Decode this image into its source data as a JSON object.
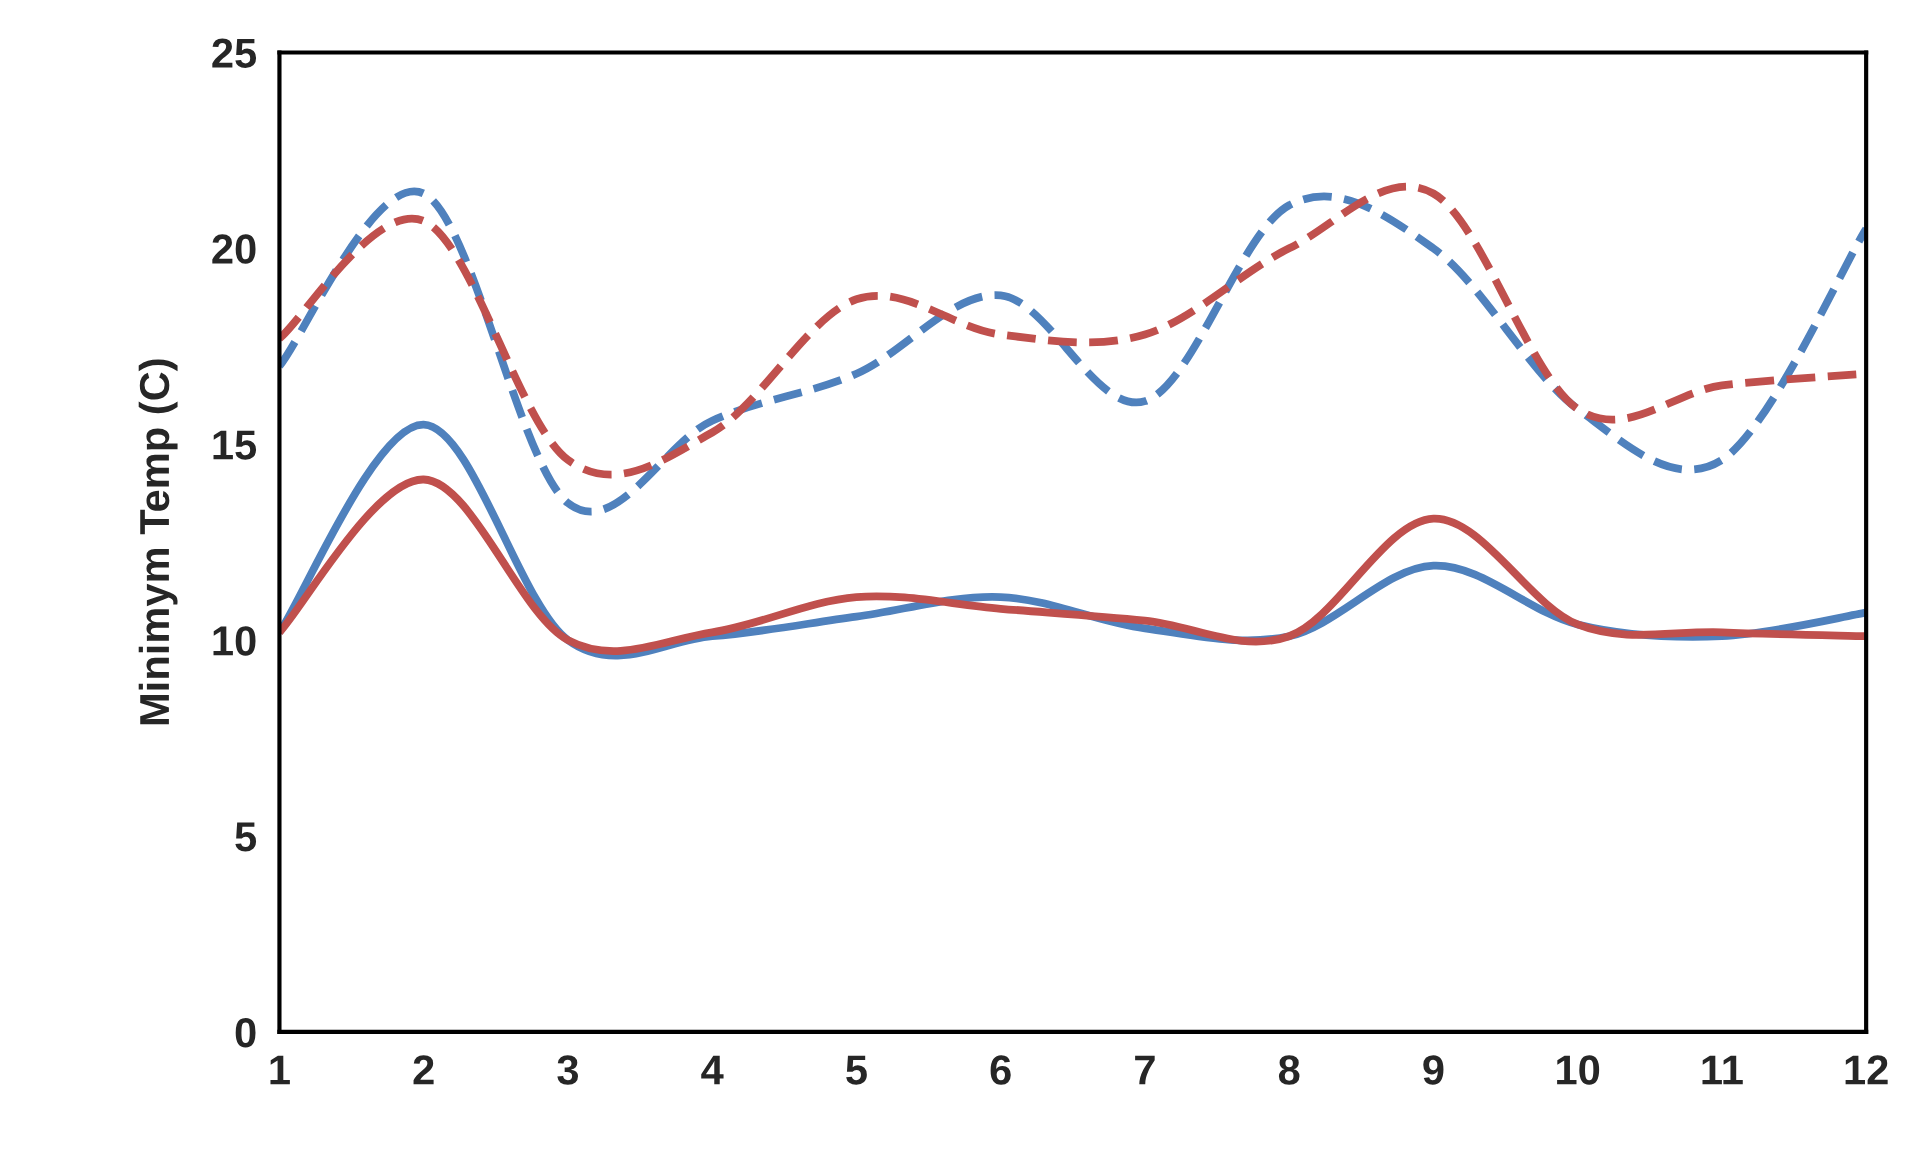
{
  "chart_data": {
    "type": "line",
    "ylabel": "Minimym Temp (C)",
    "x": [
      1,
      2,
      3,
      4,
      5,
      6,
      7,
      8,
      9,
      10,
      11,
      12
    ],
    "xlim": [
      1,
      12
    ],
    "xticks": [
      1,
      2,
      3,
      4,
      5,
      6,
      7,
      8,
      9,
      10,
      11,
      12
    ],
    "ylim": [
      0,
      25
    ],
    "yticks": [
      0,
      5,
      10,
      15,
      20,
      25
    ],
    "grid": false,
    "legend": false,
    "marker": "none",
    "series": [
      {
        "color": "#4f81bd",
        "line_style": "dashed",
        "values": [
          17.0,
          21.4,
          13.5,
          15.6,
          16.8,
          18.8,
          16.1,
          21.1,
          20.0,
          15.9,
          14.6,
          20.5
        ]
      },
      {
        "color": "#c0504d",
        "line_style": "dashed",
        "values": [
          17.7,
          20.7,
          14.6,
          15.3,
          18.7,
          17.8,
          17.8,
          20.0,
          21.4,
          15.9,
          16.5,
          16.8
        ]
      },
      {
        "color": "#4f81bd",
        "line_style": "solid",
        "values": [
          10.2,
          15.5,
          10.0,
          10.1,
          10.6,
          11.1,
          10.3,
          10.1,
          11.9,
          10.4,
          10.1,
          10.7
        ]
      },
      {
        "color": "#c0504d",
        "line_style": "solid",
        "values": [
          10.2,
          14.1,
          10.0,
          10.2,
          11.1,
          10.8,
          10.5,
          10.1,
          13.1,
          10.4,
          10.2,
          10.1
        ]
      }
    ]
  }
}
